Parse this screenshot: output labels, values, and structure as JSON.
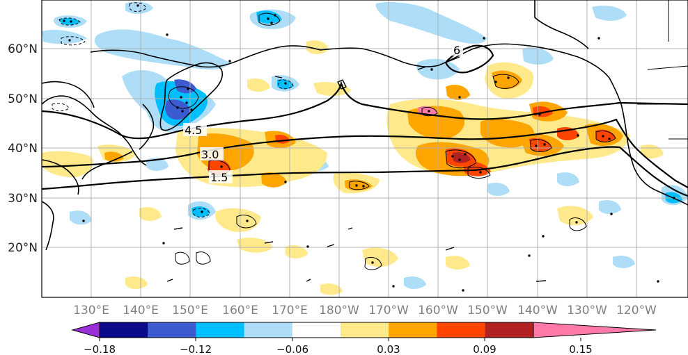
{
  "map": {
    "lat_labels": [
      "60°N",
      "50°N",
      "40°N",
      "30°N",
      "20°N"
    ],
    "lon_labels": [
      "130°E",
      "140°E",
      "150°E",
      "160°E",
      "170°E",
      "180°W",
      "170°W",
      "160°W",
      "150°W",
      "140°W",
      "130°W",
      "120°W"
    ],
    "contour_labels": [
      "6",
      "4.5",
      "3.0",
      "1.5"
    ]
  },
  "colorbar": {
    "colors": [
      "#9b30d9",
      "#0a0a8a",
      "#3d5bd0",
      "#00bfff",
      "#aeddf7",
      "#ffffff",
      "#ffe98a",
      "#ffa500",
      "#ff4500",
      "#b22222",
      "#ff7aa8"
    ],
    "tick_labels": [
      "−0.18",
      "−0.12",
      "−0.06",
      "0.03",
      "0.09",
      "0.15"
    ]
  }
}
